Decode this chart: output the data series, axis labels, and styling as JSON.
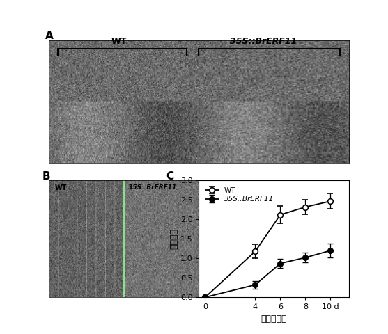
{
  "panel_A_label": "A",
  "panel_B_label": "B",
  "panel_C_label": "C",
  "wt_label": "WT",
  "transgenic_label": "35S::BrERF11",
  "wt_label_B": "WT",
  "transgenic_label_B": "35S::BrERF11",
  "x_data": [
    0,
    4,
    6,
    8,
    10
  ],
  "wt_y": [
    0.0,
    1.18,
    2.12,
    2.32,
    2.47
  ],
  "wt_err": [
    0.0,
    0.18,
    0.22,
    0.18,
    0.2
  ],
  "erf_y": [
    0.0,
    0.32,
    0.87,
    1.02,
    1.2
  ],
  "erf_err": [
    0.0,
    0.1,
    0.12,
    0.12,
    0.18
  ],
  "xlabel": "侵染后天数",
  "ylabel": "病情指数",
  "ylim": [
    0.0,
    3.0
  ],
  "yticks": [
    0.0,
    0.5,
    1.0,
    1.5,
    2.0,
    2.5,
    3.0
  ],
  "xtick_labels": [
    "0",
    "4",
    "6",
    "8",
    "10 d"
  ],
  "legend_wt": "WT",
  "legend_erf": "35S::BrERF11",
  "photo_A_mean": 110,
  "photo_A_std": 30,
  "photo_B_mean": 90,
  "photo_B_std": 25
}
